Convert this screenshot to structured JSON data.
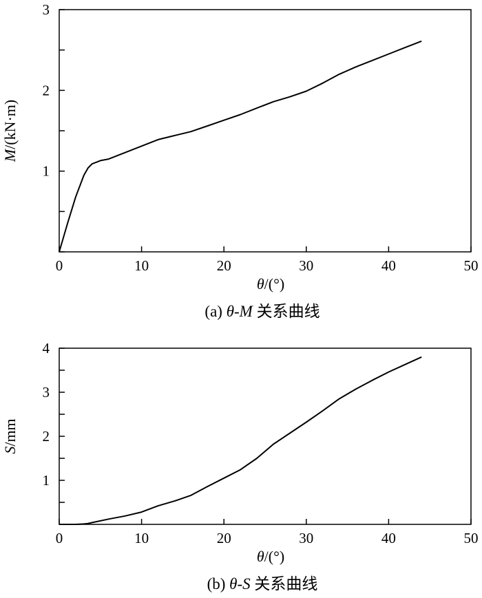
{
  "chart_data": [
    {
      "type": "line",
      "caption_prefix": "(a) ",
      "caption_symbol": "θ-M",
      "caption_text": " 关系曲线",
      "xlabel_symbol": "θ",
      "xlabel_unit": "/(°)",
      "ylabel_symbol": "M",
      "ylabel_unit": "/(kN·m)",
      "xlim": [
        0,
        50
      ],
      "ylim": [
        0,
        3
      ],
      "xticks": [
        0,
        10,
        20,
        30,
        40,
        50
      ],
      "yticks": [
        0,
        0.5,
        1,
        1.5,
        2,
        2.5,
        3
      ],
      "ytick_labels": [
        "",
        "",
        "1",
        "",
        "2",
        "",
        "3"
      ],
      "xtick_labels": [
        "0",
        "10",
        "20",
        "30",
        "40",
        "50"
      ],
      "grid": false,
      "series": [
        {
          "x": [
            0,
            1,
            2,
            3,
            3.5,
            4,
            4.5,
            5,
            6,
            8,
            10,
            12,
            14,
            16,
            18,
            20,
            22,
            24,
            26,
            28,
            30,
            32,
            34,
            36,
            38,
            40,
            42,
            44
          ],
          "y": [
            0,
            0.35,
            0.68,
            0.95,
            1.04,
            1.09,
            1.11,
            1.13,
            1.15,
            1.23,
            1.31,
            1.39,
            1.44,
            1.49,
            1.56,
            1.63,
            1.7,
            1.78,
            1.86,
            1.92,
            1.99,
            2.09,
            2.2,
            2.29,
            2.37,
            2.45,
            2.53,
            2.61
          ]
        }
      ]
    },
    {
      "type": "line",
      "caption_prefix": "(b) ",
      "caption_symbol": "θ-S",
      "caption_text": " 关系曲线",
      "xlabel_symbol": "θ",
      "xlabel_unit": "/(°)",
      "ylabel_symbol": "S",
      "ylabel_unit": "/mm",
      "xlim": [
        0,
        50
      ],
      "ylim": [
        0,
        4
      ],
      "xticks": [
        0,
        10,
        20,
        30,
        40,
        50
      ],
      "yticks": [
        0,
        0.5,
        1,
        1.5,
        2,
        2.5,
        3,
        3.5,
        4
      ],
      "ytick_labels": [
        "",
        "",
        "1",
        "",
        "2",
        "",
        "3",
        "",
        "4"
      ],
      "xtick_labels": [
        "0",
        "10",
        "20",
        "30",
        "40",
        "50"
      ],
      "grid": false,
      "series": [
        {
          "x": [
            0,
            2,
            3,
            3.5,
            4,
            5,
            6,
            8,
            10,
            12,
            14,
            16,
            18,
            20,
            22,
            24,
            26,
            28,
            30,
            32,
            34,
            36,
            38,
            40,
            42,
            44
          ],
          "y": [
            0,
            0,
            0.01,
            0.02,
            0.04,
            0.08,
            0.12,
            0.19,
            0.28,
            0.42,
            0.53,
            0.66,
            0.86,
            1.05,
            1.24,
            1.5,
            1.82,
            2.07,
            2.32,
            2.58,
            2.85,
            3.07,
            3.27,
            3.46,
            3.63,
            3.8
          ]
        }
      ]
    }
  ]
}
